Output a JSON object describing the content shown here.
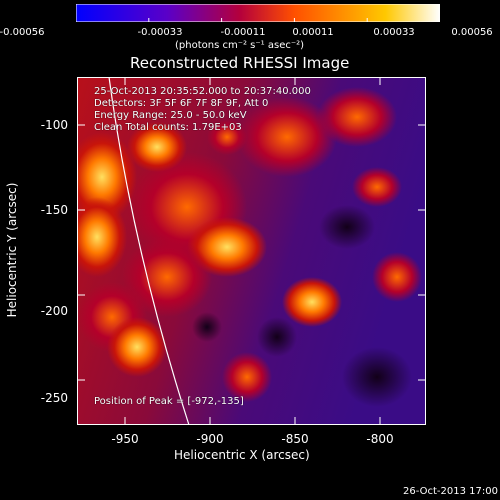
{
  "colorbar": {
    "tick_labels": [
      "-0.00056",
      "-0.00033",
      "-0.00011",
      "0.00011",
      "0.00033",
      "0.00056"
    ],
    "units_text": "(photons cm⁻² s⁻¹ asec⁻²)"
  },
  "plot": {
    "title": "Reconstructed RHESSI Image",
    "info_lines": [
      "25-Oct-2013 20:35:52.000 to 20:37:40.000",
      "Detectors: 3F 5F 6F 7F 8F 9F, Att 0",
      "Energy Range: 25.0 - 50.0 keV",
      "Clean     Total counts: 1.79E+03"
    ],
    "peak_text": "Position of Peak = [-972,-135]",
    "xlabel": "Heliocentric X (arcsec)",
    "ylabel": "Heliocentric Y (arcsec)",
    "x_ticks": [
      "-950",
      "-900",
      "-850",
      "-800"
    ],
    "y_ticks": [
      "-100",
      "-150",
      "-200",
      "-250"
    ],
    "xlim": [
      -980,
      -785
    ],
    "ylim": [
      -270,
      -75
    ]
  },
  "footer": {
    "timestamp": "26-Oct-2013 17:00"
  },
  "colors": {
    "colorbar_stops": [
      "#0000ff",
      "#5a00c8",
      "#b4003c",
      "#ff5000",
      "#ffc800",
      "#ffffff"
    ],
    "limb_line": "#ffffff"
  }
}
